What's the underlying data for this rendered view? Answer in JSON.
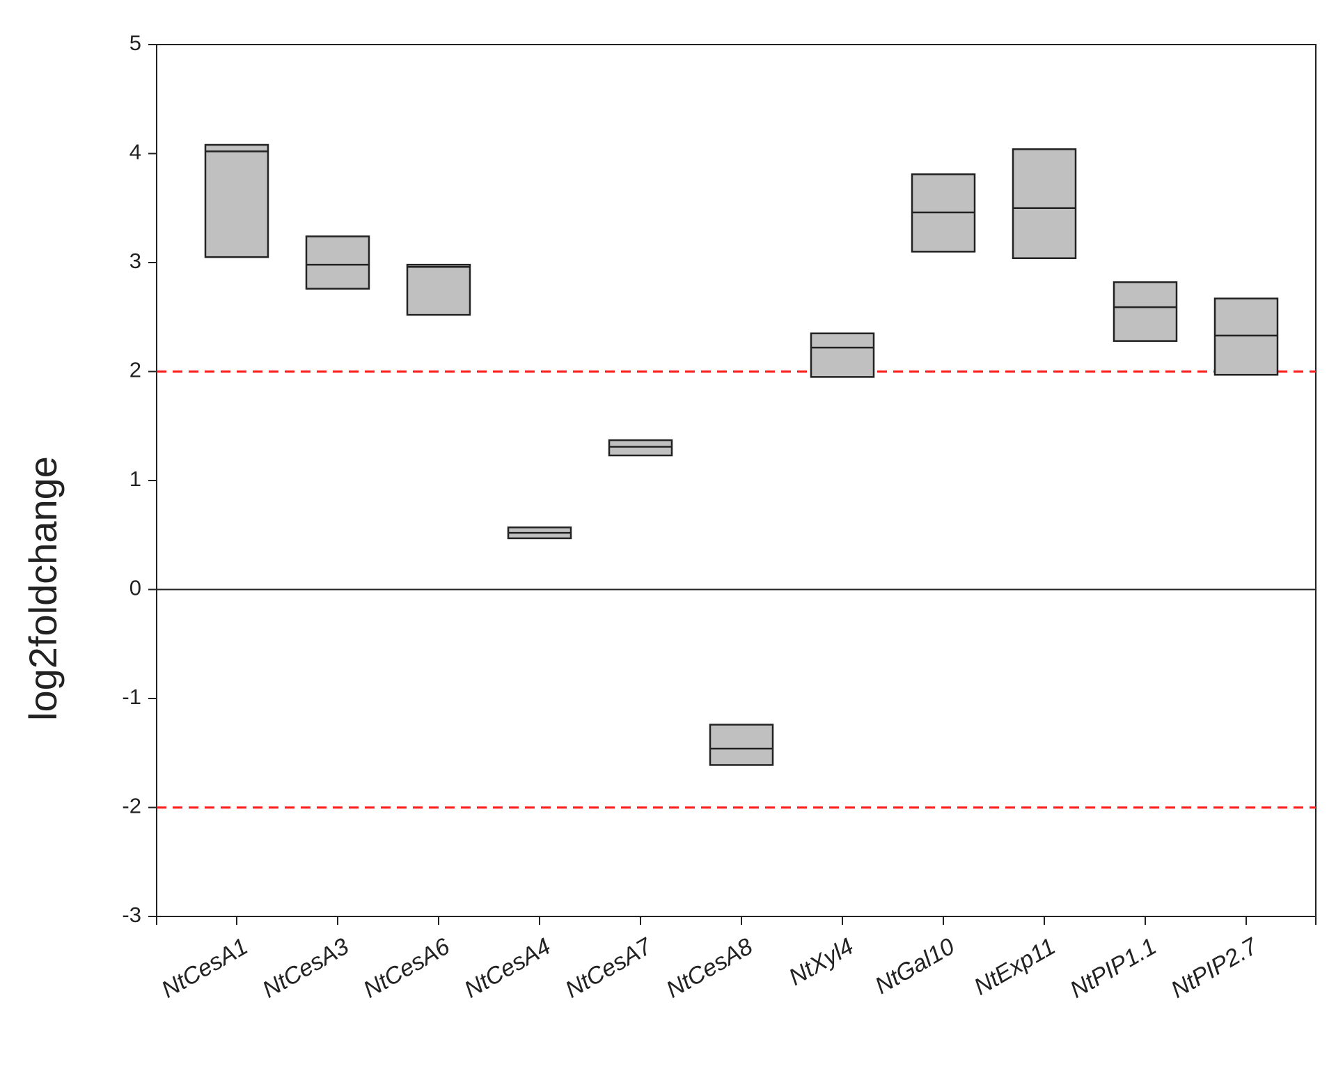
{
  "chart_data": {
    "type": "floating_box",
    "y_label": "log2foldchange",
    "categories": [
      "NtCesA1",
      "NtCesA3",
      "NtCesA6",
      "NtCesA4",
      "NtCesA7",
      "NtCesA8",
      "NtXyl4",
      "NtGal10",
      "NtExp11",
      "NtPIP1.1",
      "NtPIP2.7"
    ],
    "low": [
      3.05,
      2.76,
      2.52,
      0.47,
      1.23,
      -1.61,
      1.95,
      3.1,
      3.04,
      2.28,
      1.97
    ],
    "high": [
      4.08,
      3.24,
      2.98,
      0.57,
      1.37,
      -1.24,
      2.35,
      3.81,
      4.04,
      2.82,
      2.67
    ],
    "median": [
      4.02,
      2.98,
      2.96,
      0.52,
      1.31,
      -1.46,
      2.22,
      3.46,
      3.5,
      2.59,
      2.33
    ],
    "color": "#c0c0c0",
    "ylim": [
      -3,
      5
    ],
    "yticks": [
      -3,
      -2,
      -1,
      0,
      1,
      2,
      3,
      4,
      5
    ],
    "reference_lines": [
      {
        "value": 2,
        "color": "#ff1a1a"
      },
      {
        "value": -2,
        "color": "#ff1a1a"
      }
    ],
    "zero_line": true
  }
}
